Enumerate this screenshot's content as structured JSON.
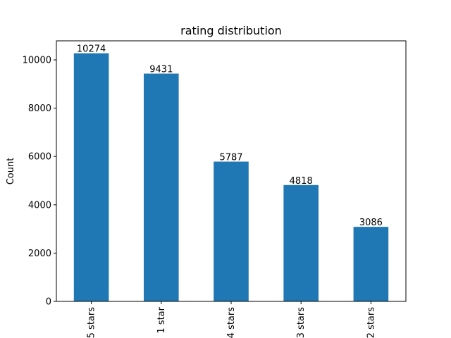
{
  "chart_data": {
    "type": "bar",
    "title": "rating distribution",
    "xlabel": "",
    "ylabel": "Count",
    "categories": [
      "5 stars",
      "1 star",
      "4 stars",
      "3 stars",
      "2 stars"
    ],
    "values": [
      10274,
      9431,
      5787,
      4818,
      3086
    ],
    "data_labels": [
      "10274",
      "9431",
      "5787",
      "4818",
      "3086"
    ],
    "ylim": [
      0,
      10788
    ],
    "yticks": [
      0,
      2000,
      4000,
      6000,
      8000,
      10000
    ],
    "ytick_labels": [
      "0",
      "2000",
      "4000",
      "6000",
      "8000",
      "10000"
    ],
    "bar_color": "#1f77b4",
    "grid": false,
    "legend": "none"
  }
}
